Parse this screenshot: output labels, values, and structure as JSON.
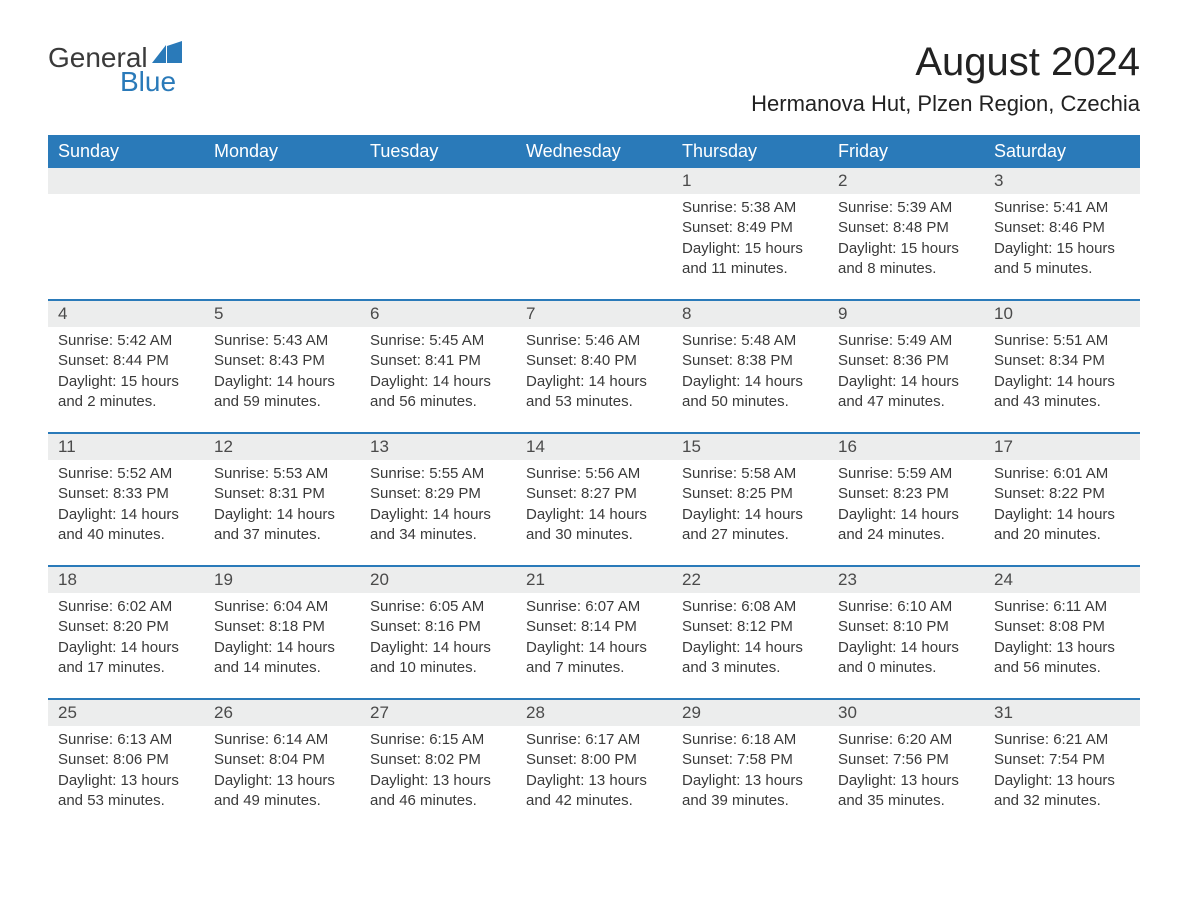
{
  "brand": {
    "line1": "General",
    "line2": "Blue"
  },
  "title": "August 2024",
  "location": "Hermanova Hut, Plzen Region, Czechia",
  "colors": {
    "header_bg": "#2a7ab9",
    "header_text": "#ffffff",
    "daynum_bg": "#eceded",
    "body_text": "#3a3a3a",
    "border": "#2a7ab9",
    "page_bg": "#ffffff"
  },
  "day_headers": [
    "Sunday",
    "Monday",
    "Tuesday",
    "Wednesday",
    "Thursday",
    "Friday",
    "Saturday"
  ],
  "weeks": [
    [
      null,
      null,
      null,
      null,
      {
        "n": "1",
        "sunrise": "5:38 AM",
        "sunset": "8:49 PM",
        "daylight": "15 hours and 11 minutes."
      },
      {
        "n": "2",
        "sunrise": "5:39 AM",
        "sunset": "8:48 PM",
        "daylight": "15 hours and 8 minutes."
      },
      {
        "n": "3",
        "sunrise": "5:41 AM",
        "sunset": "8:46 PM",
        "daylight": "15 hours and 5 minutes."
      }
    ],
    [
      {
        "n": "4",
        "sunrise": "5:42 AM",
        "sunset": "8:44 PM",
        "daylight": "15 hours and 2 minutes."
      },
      {
        "n": "5",
        "sunrise": "5:43 AM",
        "sunset": "8:43 PM",
        "daylight": "14 hours and 59 minutes."
      },
      {
        "n": "6",
        "sunrise": "5:45 AM",
        "sunset": "8:41 PM",
        "daylight": "14 hours and 56 minutes."
      },
      {
        "n": "7",
        "sunrise": "5:46 AM",
        "sunset": "8:40 PM",
        "daylight": "14 hours and 53 minutes."
      },
      {
        "n": "8",
        "sunrise": "5:48 AM",
        "sunset": "8:38 PM",
        "daylight": "14 hours and 50 minutes."
      },
      {
        "n": "9",
        "sunrise": "5:49 AM",
        "sunset": "8:36 PM",
        "daylight": "14 hours and 47 minutes."
      },
      {
        "n": "10",
        "sunrise": "5:51 AM",
        "sunset": "8:34 PM",
        "daylight": "14 hours and 43 minutes."
      }
    ],
    [
      {
        "n": "11",
        "sunrise": "5:52 AM",
        "sunset": "8:33 PM",
        "daylight": "14 hours and 40 minutes."
      },
      {
        "n": "12",
        "sunrise": "5:53 AM",
        "sunset": "8:31 PM",
        "daylight": "14 hours and 37 minutes."
      },
      {
        "n": "13",
        "sunrise": "5:55 AM",
        "sunset": "8:29 PM",
        "daylight": "14 hours and 34 minutes."
      },
      {
        "n": "14",
        "sunrise": "5:56 AM",
        "sunset": "8:27 PM",
        "daylight": "14 hours and 30 minutes."
      },
      {
        "n": "15",
        "sunrise": "5:58 AM",
        "sunset": "8:25 PM",
        "daylight": "14 hours and 27 minutes."
      },
      {
        "n": "16",
        "sunrise": "5:59 AM",
        "sunset": "8:23 PM",
        "daylight": "14 hours and 24 minutes."
      },
      {
        "n": "17",
        "sunrise": "6:01 AM",
        "sunset": "8:22 PM",
        "daylight": "14 hours and 20 minutes."
      }
    ],
    [
      {
        "n": "18",
        "sunrise": "6:02 AM",
        "sunset": "8:20 PM",
        "daylight": "14 hours and 17 minutes."
      },
      {
        "n": "19",
        "sunrise": "6:04 AM",
        "sunset": "8:18 PM",
        "daylight": "14 hours and 14 minutes."
      },
      {
        "n": "20",
        "sunrise": "6:05 AM",
        "sunset": "8:16 PM",
        "daylight": "14 hours and 10 minutes."
      },
      {
        "n": "21",
        "sunrise": "6:07 AM",
        "sunset": "8:14 PM",
        "daylight": "14 hours and 7 minutes."
      },
      {
        "n": "22",
        "sunrise": "6:08 AM",
        "sunset": "8:12 PM",
        "daylight": "14 hours and 3 minutes."
      },
      {
        "n": "23",
        "sunrise": "6:10 AM",
        "sunset": "8:10 PM",
        "daylight": "14 hours and 0 minutes."
      },
      {
        "n": "24",
        "sunrise": "6:11 AM",
        "sunset": "8:08 PM",
        "daylight": "13 hours and 56 minutes."
      }
    ],
    [
      {
        "n": "25",
        "sunrise": "6:13 AM",
        "sunset": "8:06 PM",
        "daylight": "13 hours and 53 minutes."
      },
      {
        "n": "26",
        "sunrise": "6:14 AM",
        "sunset": "8:04 PM",
        "daylight": "13 hours and 49 minutes."
      },
      {
        "n": "27",
        "sunrise": "6:15 AM",
        "sunset": "8:02 PM",
        "daylight": "13 hours and 46 minutes."
      },
      {
        "n": "28",
        "sunrise": "6:17 AM",
        "sunset": "8:00 PM",
        "daylight": "13 hours and 42 minutes."
      },
      {
        "n": "29",
        "sunrise": "6:18 AM",
        "sunset": "7:58 PM",
        "daylight": "13 hours and 39 minutes."
      },
      {
        "n": "30",
        "sunrise": "6:20 AM",
        "sunset": "7:56 PM",
        "daylight": "13 hours and 35 minutes."
      },
      {
        "n": "31",
        "sunrise": "6:21 AM",
        "sunset": "7:54 PM",
        "daylight": "13 hours and 32 minutes."
      }
    ]
  ],
  "labels": {
    "sunrise": "Sunrise: ",
    "sunset": "Sunset: ",
    "daylight": "Daylight: "
  }
}
